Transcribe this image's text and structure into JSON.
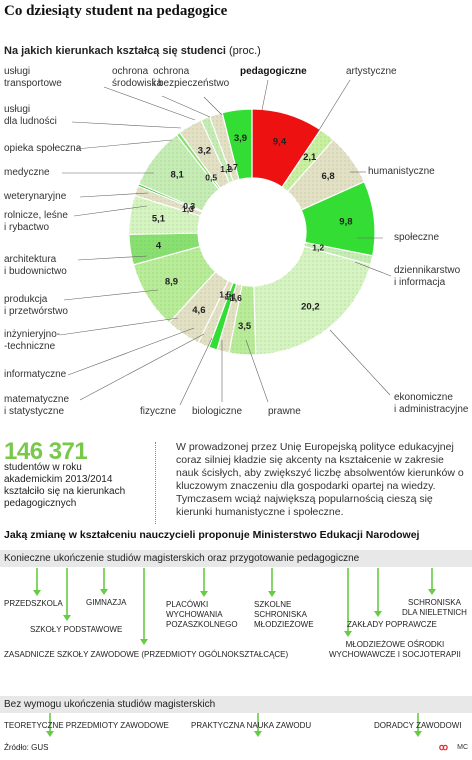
{
  "title": "Co dziesiąty student na pedagogice",
  "subtitle": "Na jakich kierunkach kształcą się studenci",
  "subtitle_unit": "(proc.)",
  "chart_data": {
    "type": "pie",
    "title": "Na jakich kierunkach kształcą się studenci (proc.)",
    "slices": [
      {
        "label": "pedagogiczne",
        "value": 9.4,
        "value_label": "9,4",
        "color": "#ee1111"
      },
      {
        "label": "artystyczne",
        "value": 2.1,
        "value_label": "2,1",
        "color": "#c8f0a0"
      },
      {
        "label": "humanistyczne",
        "value": 6.8,
        "value_label": "6,8",
        "color": "#e4e0c6"
      },
      {
        "label": "społeczne",
        "value": 9.8,
        "value_label": "9,8",
        "color": "#33dd33"
      },
      {
        "label": "dziennikarstwo i informacja",
        "value": 1.2,
        "value_label": "1,2",
        "color": "#c6ecb6"
      },
      {
        "label": "ekonomiczne i administracyjne",
        "value": 20.2,
        "value_label": "20,2",
        "color": "#d6f4c2"
      },
      {
        "label": "prawne",
        "value": 3.5,
        "value_label": "3,5",
        "color": "#b8ec98"
      },
      {
        "label": "biologiczne",
        "value": 1.6,
        "value_label": "1,6",
        "color": "#e4e0c6"
      },
      {
        "label": "fizyczne",
        "value": 1.1,
        "value_label": "1,1",
        "color": "#33dd33"
      },
      {
        "label": "matematyczne i statystyczne",
        "value": 1.5,
        "value_label": "1,5",
        "color": "#e4e0c6"
      },
      {
        "label": "informatyczne",
        "value": 4.6,
        "value_label": "4,6",
        "color": "#e4e0c6"
      },
      {
        "label": "inżynieryjno-techniczne",
        "value": 8.9,
        "value_label": "8,9",
        "color": "#b8ec98"
      },
      {
        "label": "produkcja i przetwórstwo",
        "value": 4.0,
        "value_label": "4",
        "color": "#88e070"
      },
      {
        "label": "architektura i budownictwo",
        "value": 5.1,
        "value_label": "5,1",
        "color": "#d6f4c2"
      },
      {
        "label": "rolnicze, leśne i rybactwo",
        "value": 1.3,
        "value_label": "1,3",
        "color": "#e4e0c6"
      },
      {
        "label": "weterynaryjne",
        "value": 0.3,
        "value_label": "0,3",
        "color": "#33cc33"
      },
      {
        "label": "medyczne",
        "value": 8.1,
        "value_label": "8,1",
        "color": "#c6ecb6"
      },
      {
        "label": "opieka społeczna",
        "value": 0.5,
        "value_label": "0,5",
        "color": "#88e070"
      },
      {
        "label": "usługi dla ludności",
        "value": 3.2,
        "value_label": "3,2",
        "color": "#e4e0c6"
      },
      {
        "label": "usługi transportowe",
        "value": 1.2,
        "value_label": "1,2",
        "color": "#c6ecb6"
      },
      {
        "label": "ochrona środowiska",
        "value": 1.7,
        "value_label": "1,7",
        "color": "#e4e0c6"
      },
      {
        "label": "ochrona i bezpieczeństwo",
        "value": 3.9,
        "value_label": "3,9",
        "color": "#33dd33"
      }
    ]
  },
  "outer_labels": [
    "usługi\ntransportowe",
    "ochrona\nśrodowiska",
    "ochrona\ni bezpieczeństwo",
    "pedagogiczne",
    "artystyczne",
    "usługi\ndla ludności",
    "opieka społeczna",
    "humanistyczne",
    "medyczne",
    "weterynaryjne",
    "rolnicze, leśne\ni rybactwo",
    "społeczne",
    "architektura\ni budownictwo",
    "dziennikarstwo\ni informacja",
    "produkcja\ni przetwórstwo",
    "inżynieryjno-\n-techniczne",
    "informatyczne",
    "ekonomiczne\ni administracyjne",
    "matematyczne\ni statystyczne",
    "fizyczne",
    "biologiczne",
    "prawne"
  ],
  "stat": {
    "number": "146 371",
    "text": "studentów w roku\nakademickim 2013/2014\nkształciło się na kierunkach\npedagogicznych"
  },
  "paragraph": "W prowadzonej przez Unię Europejską polityce edukacyjnej coraz silniej kładzie się akcenty na kształcenie w zakresie nauk ścisłych, aby zwiększyć liczbę absolwentów kierunków o kluczowym znaczeniu dla gospodarki opartej na wiedzy. Tymczasem wciąż największą popularnością cieszą się kierunki humanistyczne i społeczne.",
  "diagram": {
    "heading": "Jaką zmianę w kształceniu nauczycieli proponuje Ministerstwo Edukacji Narodowej",
    "bar1": "Konieczne ukończenie studiów magisterskich oraz przygotowanie pedagogiczne",
    "bar1_nodes": [
      "PRZEDSZKOLA",
      "GIMNAZJA",
      "SZKOŁY PODSTAWOWE",
      "PLACÓWKI\nWYCHOWANIA\nPOZASZKOLNEGO",
      "SZKOLNE\nSCHRONISKA\nMŁODZIEŻOWE",
      "SCHRONISKA\nDLA NIELETNICH",
      "ZAKŁADY POPRAWCZE",
      "ZASADNICZE SZKOŁY ZAWODOWE (PRZEDMIOTY OGÓLNOKSZTAŁCĄCE)",
      "MŁODZIEŻOWE OŚRODKI\nWYCHOWAWCZE I SOCJOTERAPII"
    ],
    "bar2": "Bez wymogu ukończenia studiów magisterskich",
    "bar2_nodes": [
      "TEORETYCZNE PRZEDMIOTY ZAWODOWE",
      "PRAKTYCZNA NAUKA ZAWODU",
      "DORADCY ZAWODOWI"
    ]
  },
  "source": "Źródło: GUS",
  "logo": "ꝏ",
  "credit": "MC",
  "colors": {
    "accent_green": "#78c84a",
    "arrow_green": "#66cc44",
    "red": "#ee1111"
  }
}
